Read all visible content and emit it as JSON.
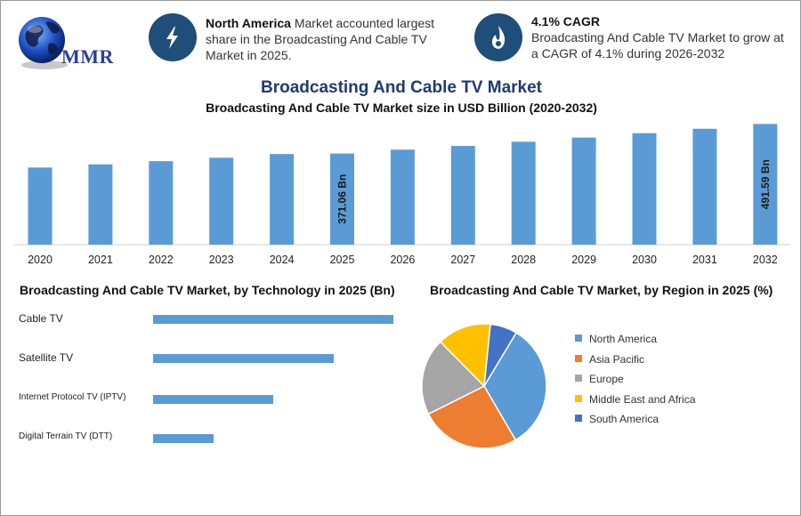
{
  "header": {
    "logo": {
      "text": "MMR",
      "icon": "globe-icon"
    },
    "highlight_left": {
      "icon": "lightning-icon",
      "bold": "North America",
      "text": " Market accounted largest share in the Broadcasting And Cable TV Market in 2025."
    },
    "highlight_right": {
      "icon": "flame-icon",
      "bold": "4.1% CAGR",
      "text": "Broadcasting And Cable TV Market to grow at a CAGR of 4.1% during 2026-2032"
    }
  },
  "main_title": "Broadcasting And Cable TV Market",
  "colors": {
    "bar": "#5b9bd5",
    "title": "#1f3b70",
    "icon_bg": "#1f4e79"
  },
  "chart_data": [
    {
      "type": "bar",
      "title": "Broadcasting And Cable TV Market size in USD Billion (2020-2032)",
      "categories": [
        "2020",
        "2021",
        "2022",
        "2023",
        "2024",
        "2025",
        "2026",
        "2027",
        "2028",
        "2029",
        "2030",
        "2031",
        "2032"
      ],
      "values": [
        314,
        327,
        340,
        354,
        369,
        371.06,
        387,
        402,
        419,
        436,
        454,
        472,
        491.59
      ],
      "data_labels": {
        "5": "371.06 Bn",
        "12": "491.59 Bn"
      },
      "ylim": [
        0,
        500
      ],
      "grid": false
    },
    {
      "type": "bar",
      "orientation": "horizontal",
      "title": "Broadcasting And Cable TV Market, by Technology in 2025 (Bn)",
      "categories": [
        "Cable TV",
        "Satellite TV",
        "Internet Protocol TV (IPTV)",
        "Digital Terrain TV (DTT)"
      ],
      "values": [
        100,
        75,
        50,
        25
      ],
      "grid": false
    },
    {
      "type": "pie",
      "title": "Broadcasting And Cable TV Market, by Region in 2025 (%)",
      "categories": [
        "North America",
        "Asia Pacific",
        "Europe",
        "Middle East and Africa",
        "South America"
      ],
      "values": [
        33,
        26,
        20,
        14,
        7
      ],
      "colors": [
        "#5b9bd5",
        "#ed7d31",
        "#a5a5a5",
        "#ffc000",
        "#4472c4"
      ],
      "legend": "right"
    }
  ]
}
